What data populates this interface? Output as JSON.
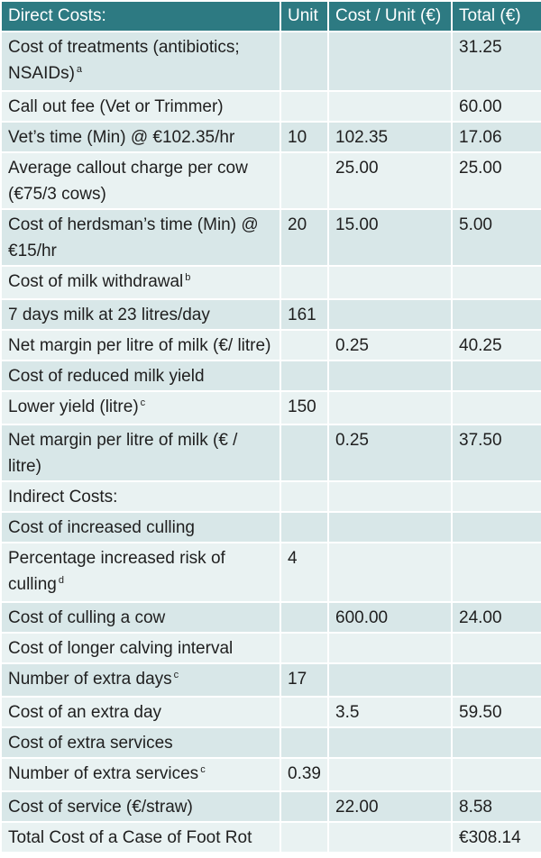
{
  "headers": [
    "Direct Costs:",
    "Unit",
    "Cost / Unit (€)",
    "Total (€)"
  ],
  "rows": [
    {
      "label": "Cost of treatments (antibiotics; NSAIDs)",
      "note": "a",
      "unit": "",
      "cpu": "",
      "total": "31.25"
    },
    {
      "label": "Call out fee (Vet or Trimmer)",
      "note": "",
      "unit": "",
      "cpu": "",
      "total": "60.00"
    },
    {
      "label": "Vet’s time (Min) @ €102.35/hr",
      "note": "",
      "unit": "10",
      "cpu": "102.35",
      "total": "17.06"
    },
    {
      "label": "Average callout charge per cow (€75/3 cows)",
      "note": "",
      "unit": "",
      "cpu": "25.00",
      "total": "25.00"
    },
    {
      "label": "Cost of herdsman’s time (Min) @ €15/hr",
      "note": "",
      "unit": "20",
      "cpu": "15.00",
      "total": "5.00"
    },
    {
      "label": "Cost of milk withdrawal",
      "note": "b",
      "unit": "",
      "cpu": "",
      "total": ""
    },
    {
      "label": "7 days milk at 23 litres/day",
      "note": "",
      "unit": "161",
      "cpu": "",
      "total": ""
    },
    {
      "label": "Net margin per litre of milk (€/ litre)",
      "note": "",
      "unit": "",
      "cpu": "0.25",
      "total": "40.25"
    },
    {
      "label": "Cost of reduced milk yield",
      "note": "",
      "unit": "",
      "cpu": "",
      "total": ""
    },
    {
      "label": "Lower yield (litre)",
      "note": "c",
      "unit": "150",
      "cpu": "",
      "total": ""
    },
    {
      "label": "Net margin per litre of milk (€ / litre)",
      "note": "",
      "unit": "",
      "cpu": "0.25",
      "total": "37.50"
    },
    {
      "label": "Indirect Costs:",
      "note": "",
      "unit": "",
      "cpu": "",
      "total": "",
      "span": true
    },
    {
      "label": "Cost of increased culling",
      "note": "",
      "unit": "",
      "cpu": "",
      "total": ""
    },
    {
      "label": "Percentage increased risk of culling",
      "note": "d",
      "unit": "4",
      "cpu": "",
      "total": ""
    },
    {
      "label": "Cost of culling a cow",
      "note": "",
      "unit": "",
      "cpu": "600.00",
      "total": "24.00"
    },
    {
      "label": "Cost of longer calving interval",
      "note": "",
      "unit": "",
      "cpu": "",
      "total": ""
    },
    {
      "label": "Number of extra days",
      "note": "c",
      "unit": "17",
      "cpu": "",
      "total": ""
    },
    {
      "label": "Cost of an extra day",
      "note": "",
      "unit": "",
      "cpu": "3.5",
      "total": "59.50"
    },
    {
      "label": "Cost of extra services",
      "note": "",
      "unit": "",
      "cpu": "",
      "total": ""
    },
    {
      "label": "Number of extra services",
      "note": "c",
      "unit": "0.39",
      "cpu": "",
      "total": ""
    },
    {
      "label": "Cost of service (€/straw)",
      "note": "",
      "unit": "",
      "cpu": "22.00",
      "total": "8.58"
    },
    {
      "label": "Total Cost of a Case of Foot Rot",
      "note": "",
      "unit": "",
      "cpu": "",
      "total": "€308.14"
    }
  ]
}
